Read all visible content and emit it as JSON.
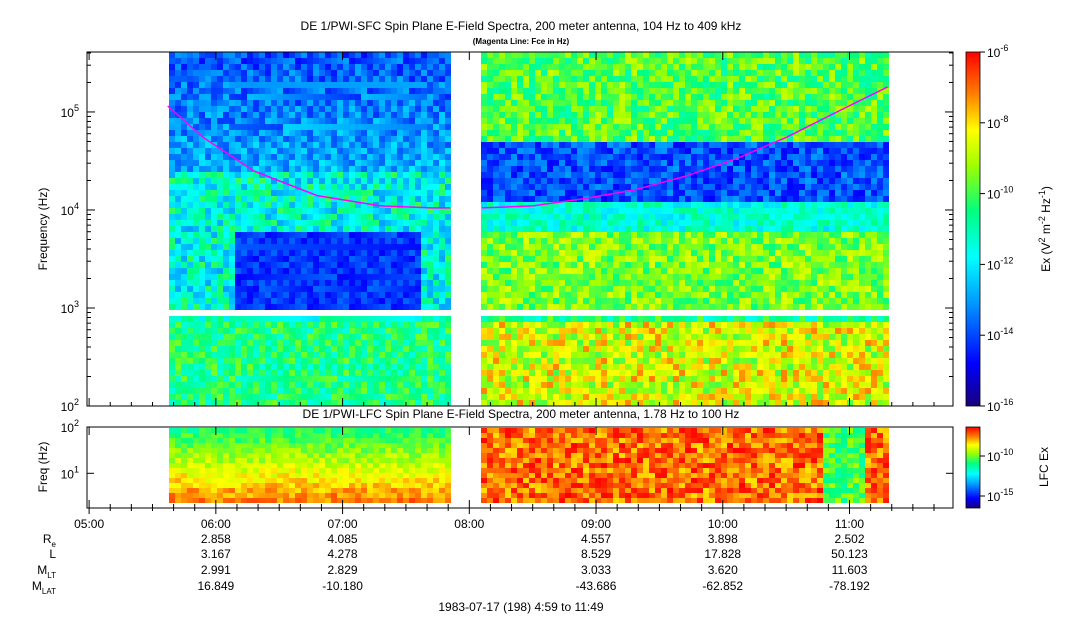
{
  "chart_data": [
    {
      "type": "heatmap",
      "title": "DE 1/PWI-SFC  Spin Plane E-Field Spectra, 200 meter antenna, 104 Hz to 409 kHz",
      "subtitle": "(Magenta Line: Fce in Hz)",
      "ylabel": "Frequency (Hz)",
      "yscale": "log",
      "ylim": [
        100,
        409000
      ],
      "ytick_labels": [
        {
          "base": "10",
          "exp": "2"
        },
        {
          "base": "10",
          "exp": "3"
        },
        {
          "base": "10",
          "exp": "4"
        },
        {
          "base": "10",
          "exp": "5"
        }
      ],
      "xlim": [
        "04:59",
        "11:49"
      ],
      "colorbar": {
        "label_main": "Ex (V",
        "label_sup1": "2",
        "label_mid": " m",
        "label_sup2": "-2",
        "label_mid2": " Hz",
        "label_sup3": "-1",
        "label_end": ")",
        "range": [
          1e-16,
          1e-06
        ],
        "tick_labels": [
          {
            "base": "10",
            "exp": "-6"
          },
          {
            "base": "10",
            "exp": "-8"
          },
          {
            "base": "10",
            "exp": "-10"
          },
          {
            "base": "10",
            "exp": "-12"
          },
          {
            "base": "10",
            "exp": "-14"
          },
          {
            "base": "10",
            "exp": "-16"
          }
        ]
      },
      "fce_line": {
        "color": "#ff00ff",
        "segment1": [
          [
            5.62,
            115000
          ],
          [
            5.9,
            55000
          ],
          [
            6.3,
            25000
          ],
          [
            6.8,
            14000
          ],
          [
            7.3,
            11000
          ],
          [
            7.7,
            10500
          ],
          [
            7.85,
            10500
          ]
        ],
        "segment2": [
          [
            8.1,
            10500
          ],
          [
            8.5,
            11000
          ],
          [
            8.9,
            13000
          ],
          [
            9.3,
            16000
          ],
          [
            9.7,
            22000
          ],
          [
            10.1,
            33000
          ],
          [
            10.5,
            55000
          ],
          [
            10.9,
            100000
          ],
          [
            11.3,
            180000
          ]
        ]
      }
    },
    {
      "type": "heatmap",
      "title": "DE 1/PWI-LFC  Spin Plane E-Field Spectra, 200 meter antenna, 1.78 Hz to 100 Hz",
      "ylabel": "Freq (Hz)",
      "yscale": "log",
      "ylim": [
        1.78,
        100
      ],
      "ytick_labels": [
        {
          "base": "10",
          "exp": "1"
        },
        {
          "base": "10",
          "exp": "2"
        }
      ],
      "colorbar": {
        "label": "LFC Ex",
        "tick_labels": [
          {
            "base": "10",
            "exp": "-10"
          },
          {
            "base": "10",
            "exp": "-15"
          }
        ]
      }
    }
  ],
  "time_axis": {
    "ticks": [
      "05:00",
      "06:00",
      "07:00",
      "08:00",
      "09:00",
      "10:00",
      "11:00"
    ]
  },
  "ephemeris": {
    "labels": [
      {
        "main": "R",
        "sub": "e"
      },
      {
        "main": "L",
        "sub": ""
      },
      {
        "main": "M",
        "sub": "LT"
      },
      {
        "main": "M",
        "sub": "LAT"
      }
    ],
    "rows": [
      [
        "2.858",
        "4.085",
        "",
        "4.557",
        "3.898",
        "2.502"
      ],
      [
        "3.167",
        "4.278",
        "",
        "8.529",
        "17.828",
        "50.123"
      ],
      [
        "2.991",
        "2.829",
        "",
        "3.033",
        "3.620",
        "11.603"
      ],
      [
        "16.849",
        "-10.180",
        "",
        "-43.686",
        "-62.852",
        "-78.192"
      ]
    ],
    "columns_at_hours": [
      6,
      7,
      8,
      9,
      10,
      11
    ]
  },
  "footer": "1983-07-17 (198) 4:59 to 11:49"
}
